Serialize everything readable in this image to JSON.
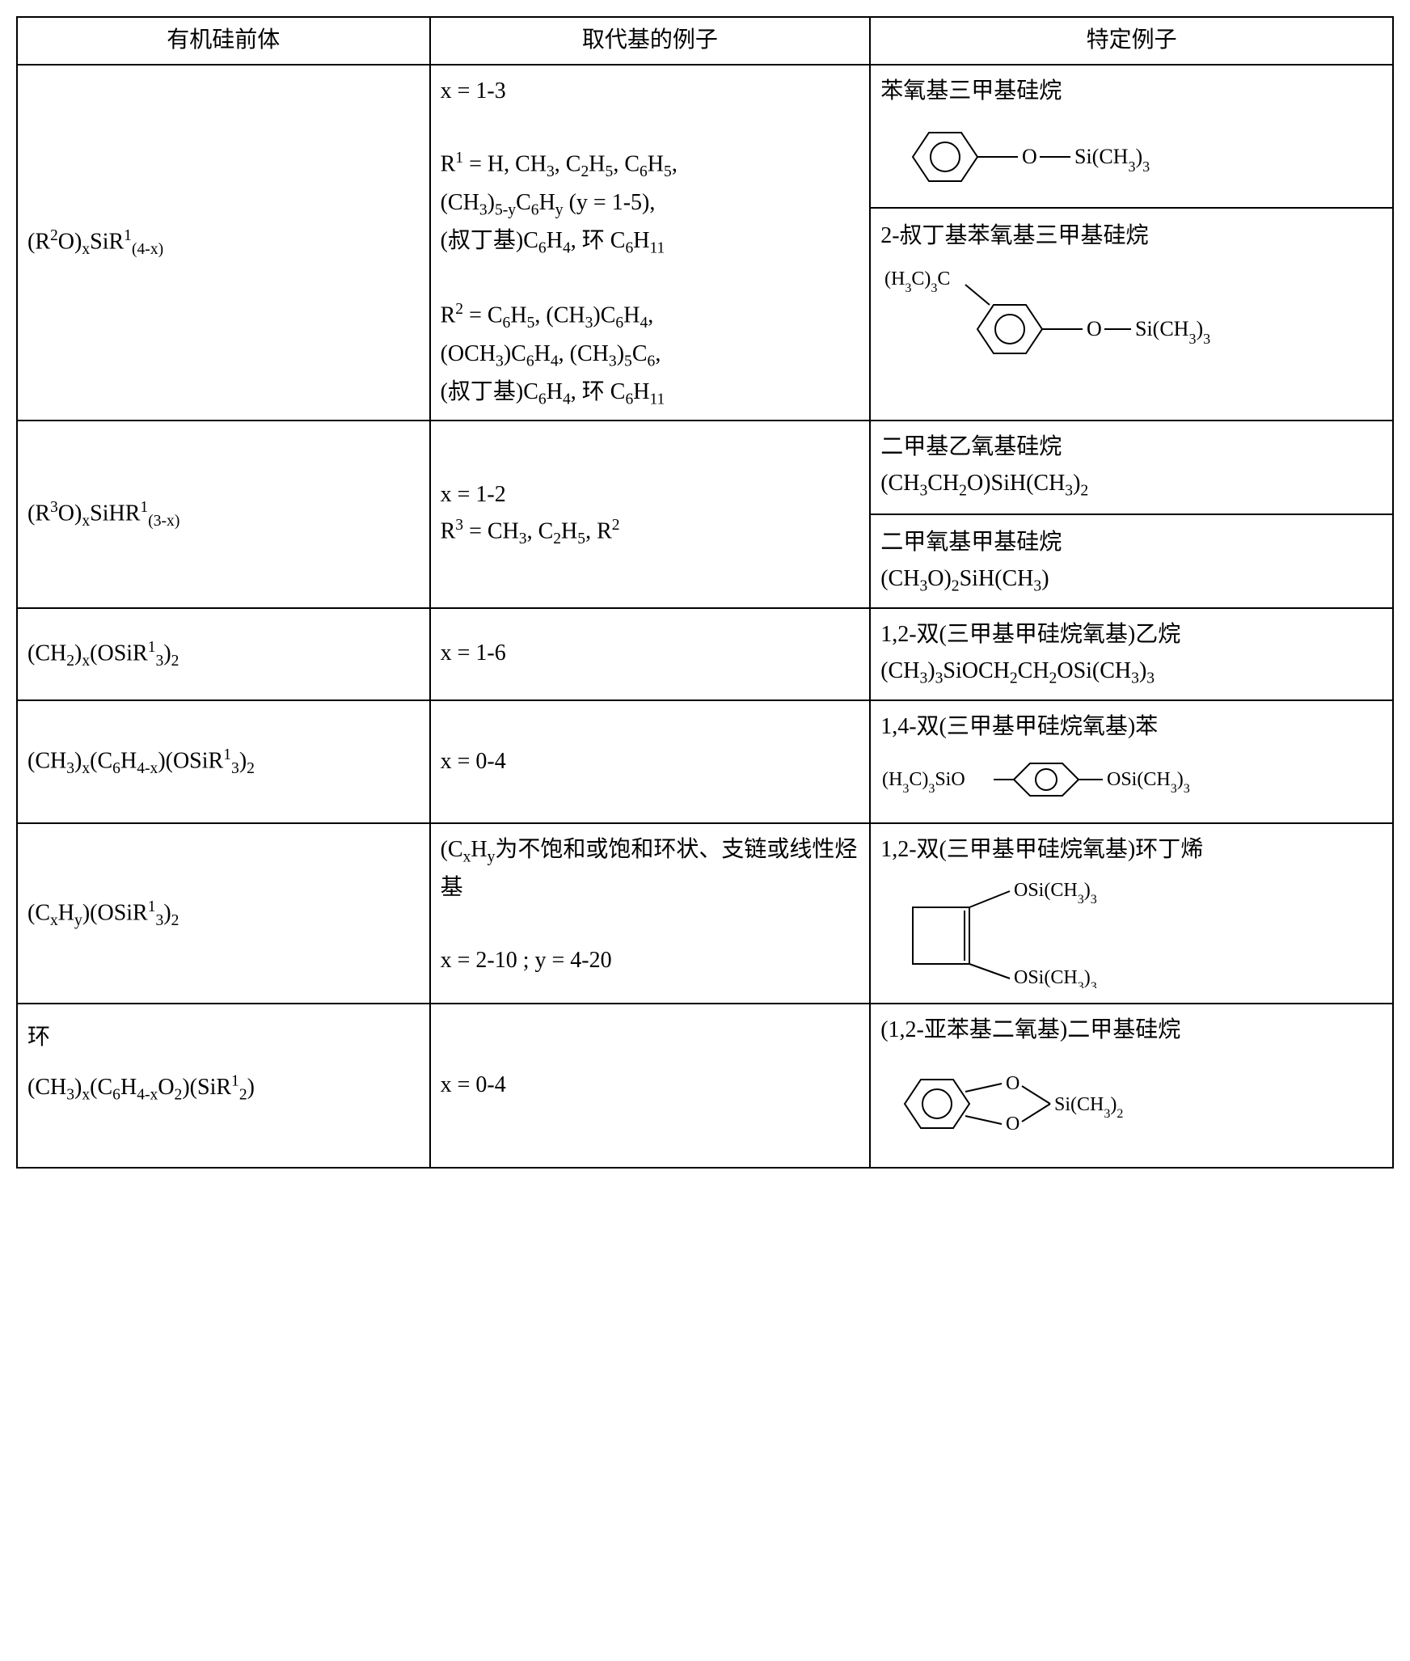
{
  "headers": {
    "col1": "有机硅前体",
    "col2": "取代基的例子",
    "col3": "特定例子"
  },
  "rows": [
    {
      "precursor_html": "(R<sup>2</sup>O)<sub>x</sub>SiR<sup>1</sup><sub>(4-x)</sub>",
      "substituent_lines": [
        "x = 1-3",
        "",
        "R<sup>1</sup> = H, CH<sub>3</sub>, C<sub>2</sub>H<sub>5</sub>, C<sub>6</sub>H<sub>5</sub>,",
        "(CH<sub>3</sub>)<sub>5-y</sub>C<sub>6</sub>H<sub>y</sub> (y = 1-5),",
        "(叔丁基)C<sub>6</sub>H<sub>4</sub>, 环 C<sub>6</sub>H<sub>11</sub>",
        "",
        "R<sup>2</sup> = C<sub>6</sub>H<sub>5</sub>, (CH<sub>3</sub>)C<sub>6</sub>H<sub>4</sub>,",
        "(OCH<sub>3</sub>)C<sub>6</sub>H<sub>4</sub>, (CH<sub>3</sub>)<sub>5</sub>C<sub>6</sub>,",
        "(叔丁基)C<sub>6</sub>H<sub>4</sub>, 环 C<sub>6</sub>H<sub>11</sub>"
      ],
      "examples": [
        {
          "name": "苯氧基三甲基硅烷",
          "structure": "phenoxy-tms"
        },
        {
          "name": "2-叔丁基苯氧基三甲基硅烷",
          "structure": "tbu-phenoxy-tms"
        }
      ]
    },
    {
      "precursor_html": "(R<sup>3</sup>O)<sub>x</sub>SiHR<sup>1</sup><sub>(3-x)</sub>",
      "substituent_lines": [
        "x = 1-2",
        "R<sup>3</sup> = CH<sub>3</sub>, C<sub>2</sub>H<sub>5</sub>, R<sup>2</sup>"
      ],
      "examples": [
        {
          "name": "二甲基乙氧基硅烷",
          "formula": "(CH<sub>3</sub>CH<sub>2</sub>O)SiH(CH<sub>3</sub>)<sub>2</sub>"
        },
        {
          "name": "二甲氧基甲基硅烷",
          "formula": "(CH<sub>3</sub>O)<sub>2</sub>SiH(CH<sub>3</sub>)"
        }
      ]
    },
    {
      "precursor_html": "(CH<sub>2</sub>)<sub>x</sub>(OSiR<sup>1</sup><sub>3</sub>)<sub>2</sub>",
      "substituent_lines": [
        "x = 1-6"
      ],
      "examples": [
        {
          "name": "1,2-双(三甲基甲硅烷氧基)乙烷",
          "formula": "(CH<sub>3</sub>)<sub>3</sub>SiOCH<sub>2</sub>CH<sub>2</sub>OSi(CH<sub>3</sub>)<sub>3</sub>"
        }
      ]
    },
    {
      "precursor_html": "(CH<sub>3</sub>)<sub>x</sub>(C<sub>6</sub>H<sub>4-x</sub>)(OSiR<sup>1</sup><sub>3</sub>)<sub>2</sub>",
      "substituent_lines": [
        "x = 0-4"
      ],
      "examples": [
        {
          "name": "1,4-双(三甲基甲硅烷氧基)苯",
          "structure": "bis-tms-benzene"
        }
      ]
    },
    {
      "precursor_html": "(C<sub>x</sub>H<sub>y</sub>)(OSiR<sup>1</sup><sub>3</sub>)<sub>2</sub>",
      "substituent_lines": [
        "(C<sub>x</sub>H<sub>y</sub>为不饱和或饱和环状、支链或线性烃基",
        "",
        "x = 2-10 ; y = 4-20"
      ],
      "examples": [
        {
          "name": "1,2-双(三甲基甲硅烷氧基)环丁烯",
          "structure": "cyclobutene-tms"
        }
      ]
    },
    {
      "precursor_html": "环<br>(CH<sub>3</sub>)<sub>x</sub>(C<sub>6</sub>H<sub>4-x</sub>O<sub>2</sub>)(SiR<sup>1</sup><sub>2</sub>)",
      "substituent_lines": [
        "x = 0-4"
      ],
      "examples": [
        {
          "name": "(1,2-亚苯基二氧基)二甲基硅烷",
          "structure": "phenylenedioxy-si"
        }
      ]
    }
  ],
  "style": {
    "border_color": "#000000",
    "background_color": "#ffffff",
    "text_color": "#000000",
    "font_size_pt": 14,
    "line_width": 2
  }
}
